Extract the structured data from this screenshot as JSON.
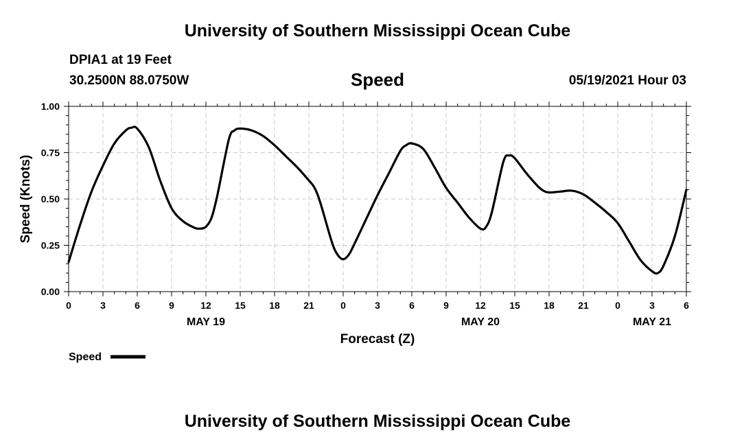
{
  "header": {
    "title": "University of Southern Mississippi Ocean Cube",
    "station": "DPIA1 at 19 Feet",
    "coordinates": "30.2500N  88.0750W",
    "chart_title": "Speed",
    "datetime": "05/19/2021 Hour 03"
  },
  "footer": {
    "title": "University of Southern Mississippi Ocean Cube"
  },
  "colors": {
    "line": "#000000",
    "grid": "#c8c8c8"
  },
  "chart_data": {
    "type": "line",
    "title": "Speed",
    "xlabel": "Forecast (Z)",
    "ylabel": "Speed (Knots)",
    "xlim": [
      0,
      54
    ],
    "ylim": [
      0,
      1
    ],
    "x_unit": "hours",
    "xtick_values": [
      0,
      3,
      6,
      9,
      12,
      15,
      18,
      21,
      24,
      27,
      30,
      33,
      36,
      39,
      42,
      45,
      48,
      51,
      54
    ],
    "xtick_labels": [
      "0",
      "3",
      "6",
      "9",
      "12",
      "15",
      "18",
      "21",
      "0",
      "3",
      "6",
      "9",
      "12",
      "15",
      "18",
      "21",
      "0",
      "3",
      "6"
    ],
    "date_labels": [
      {
        "x": 12,
        "label": "MAY 19"
      },
      {
        "x": 36,
        "label": "MAY 20"
      },
      {
        "x": 51,
        "label": "MAY 21"
      }
    ],
    "yticks": [
      0,
      0.25,
      0.5,
      0.75,
      1
    ],
    "ytick_labels": [
      "0.00",
      "0.25",
      "0.50",
      "0.75",
      "1.00"
    ],
    "grid": true,
    "legend": "bottom-left",
    "series": [
      {
        "name": "Speed",
        "x": [
          0,
          1,
          2,
          3,
          4,
          5,
          5.5,
          6,
          7,
          8,
          9,
          10,
          11,
          11.5,
          12,
          12.5,
          13,
          14,
          14.5,
          15,
          16,
          17,
          18,
          19,
          20,
          21,
          21.5,
          22,
          23,
          23.5,
          24,
          24.5,
          25,
          26,
          27,
          28,
          29,
          29.5,
          30,
          31,
          32,
          33,
          34,
          35,
          36,
          36.5,
          37,
          38,
          38.5,
          39,
          40,
          41,
          41.5,
          42,
          43,
          44,
          45,
          46,
          47,
          48,
          49,
          50,
          51,
          51.5,
          52,
          53,
          54
        ],
        "values": [
          0.16,
          0.36,
          0.54,
          0.68,
          0.8,
          0.87,
          0.885,
          0.88,
          0.78,
          0.6,
          0.45,
          0.38,
          0.345,
          0.34,
          0.35,
          0.4,
          0.52,
          0.82,
          0.87,
          0.88,
          0.87,
          0.84,
          0.79,
          0.73,
          0.67,
          0.6,
          0.56,
          0.48,
          0.27,
          0.2,
          0.175,
          0.2,
          0.26,
          0.39,
          0.52,
          0.64,
          0.76,
          0.79,
          0.8,
          0.77,
          0.67,
          0.56,
          0.48,
          0.4,
          0.34,
          0.35,
          0.43,
          0.7,
          0.735,
          0.72,
          0.64,
          0.57,
          0.545,
          0.535,
          0.54,
          0.545,
          0.525,
          0.48,
          0.43,
          0.37,
          0.27,
          0.17,
          0.11,
          0.1,
          0.14,
          0.3,
          0.55
        ]
      }
    ]
  }
}
